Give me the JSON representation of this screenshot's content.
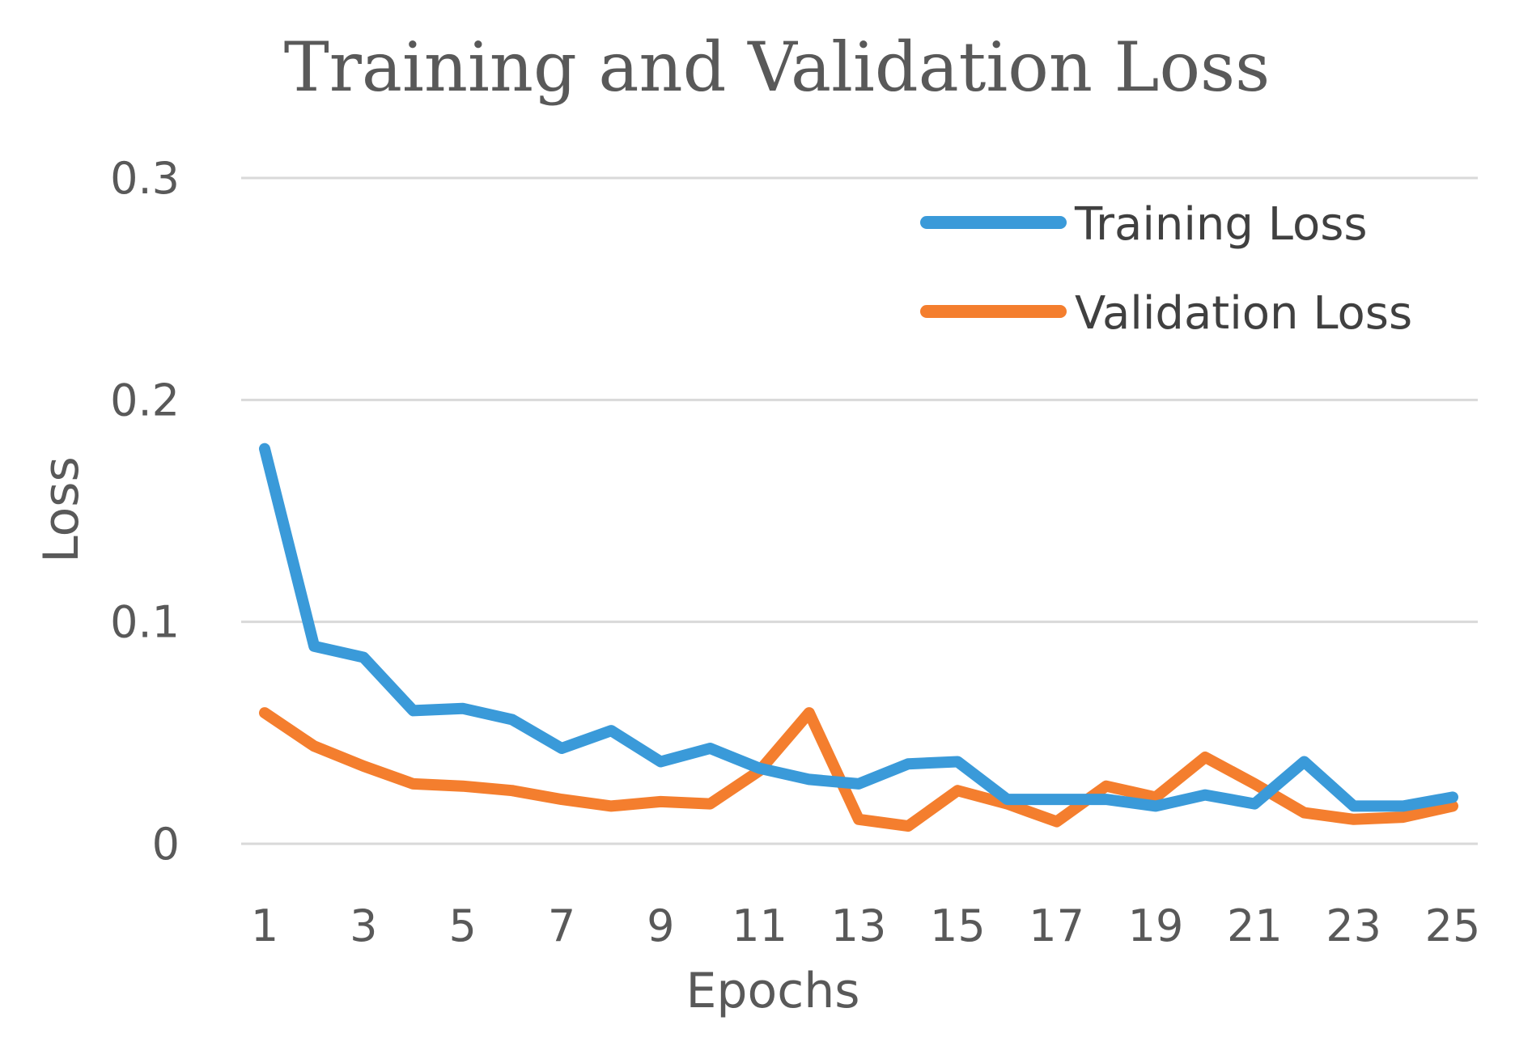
{
  "chart_data": {
    "type": "line",
    "title": "Training and Validation Loss",
    "xlabel": "Epochs",
    "ylabel": "Loss",
    "x": [
      1,
      2,
      3,
      4,
      5,
      6,
      7,
      8,
      9,
      10,
      11,
      12,
      13,
      14,
      15,
      16,
      17,
      18,
      19,
      20,
      21,
      22,
      23,
      24,
      25
    ],
    "x_tick_labels": [
      "1",
      "3",
      "5",
      "7",
      "9",
      "11",
      "13",
      "15",
      "17",
      "19",
      "21",
      "23",
      "25"
    ],
    "x_tick_values": [
      1,
      3,
      5,
      7,
      9,
      11,
      13,
      15,
      17,
      19,
      21,
      23,
      25
    ],
    "y_ticks": [
      0,
      0.1,
      0.2,
      0.3
    ],
    "y_tick_labels": [
      "0",
      "0.1",
      "0.2",
      "0.3"
    ],
    "ylim": [
      0,
      0.3
    ],
    "grid": true,
    "legend_position": "top-right",
    "series": [
      {
        "name": "Training Loss",
        "color": "#3a9ad9",
        "values": [
          0.178,
          0.089,
          0.084,
          0.06,
          0.061,
          0.056,
          0.043,
          0.051,
          0.037,
          0.043,
          0.034,
          0.029,
          0.027,
          0.036,
          0.037,
          0.02,
          0.02,
          0.02,
          0.017,
          0.022,
          0.018,
          0.037,
          0.017,
          0.017,
          0.021
        ]
      },
      {
        "name": "Validation Loss",
        "color": "#f47e2e",
        "values": [
          0.059,
          0.044,
          0.035,
          0.027,
          0.026,
          0.024,
          0.02,
          0.017,
          0.019,
          0.018,
          0.033,
          0.059,
          0.011,
          0.008,
          0.024,
          0.018,
          0.01,
          0.026,
          0.021,
          0.039,
          0.027,
          0.014,
          0.011,
          0.012,
          0.017
        ]
      }
    ]
  }
}
